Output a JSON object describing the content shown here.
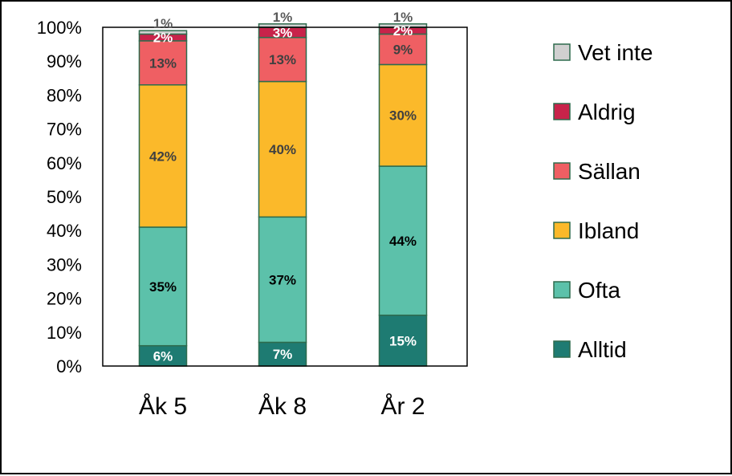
{
  "chart_data": {
    "type": "bar",
    "stacked": true,
    "categories": [
      "Åk 5",
      "Åk 8",
      "År 2"
    ],
    "ylim": [
      0,
      100
    ],
    "yticks": [
      "0%",
      "10%",
      "20%",
      "30%",
      "40%",
      "50%",
      "60%",
      "70%",
      "80%",
      "90%",
      "100%"
    ],
    "grid": false,
    "legend_position": "right",
    "series": [
      {
        "name": "Alltid",
        "color": "#1e7b72",
        "label_color": "#ffffff",
        "values": [
          6,
          7,
          15
        ],
        "labels": [
          "6%",
          "7%",
          "15%"
        ]
      },
      {
        "name": "Ofta",
        "color": "#5cc1aa",
        "label_color": "#000000",
        "values": [
          35,
          37,
          44
        ],
        "labels": [
          "35%",
          "37%",
          "44%"
        ]
      },
      {
        "name": "Ibland",
        "color": "#fbb92a",
        "label_color": "#404040",
        "values": [
          42,
          40,
          30
        ],
        "labels": [
          "42%",
          "40%",
          "30%"
        ]
      },
      {
        "name": "Sällan",
        "color": "#ef5f63",
        "label_color": "#404040",
        "values": [
          13,
          13,
          9
        ],
        "labels": [
          "13%",
          "13%",
          "9%"
        ]
      },
      {
        "name": "Aldrig",
        "color": "#c8234a",
        "label_color": "#ffffff",
        "values": [
          2,
          3,
          2
        ],
        "labels": [
          "2%",
          "3%",
          "2%"
        ]
      },
      {
        "name": "Vet inte",
        "color": "#d0d0d0",
        "label_color": "#595959",
        "values": [
          1,
          1,
          1
        ],
        "labels": [
          "1%",
          "1%",
          "1%"
        ]
      }
    ]
  }
}
